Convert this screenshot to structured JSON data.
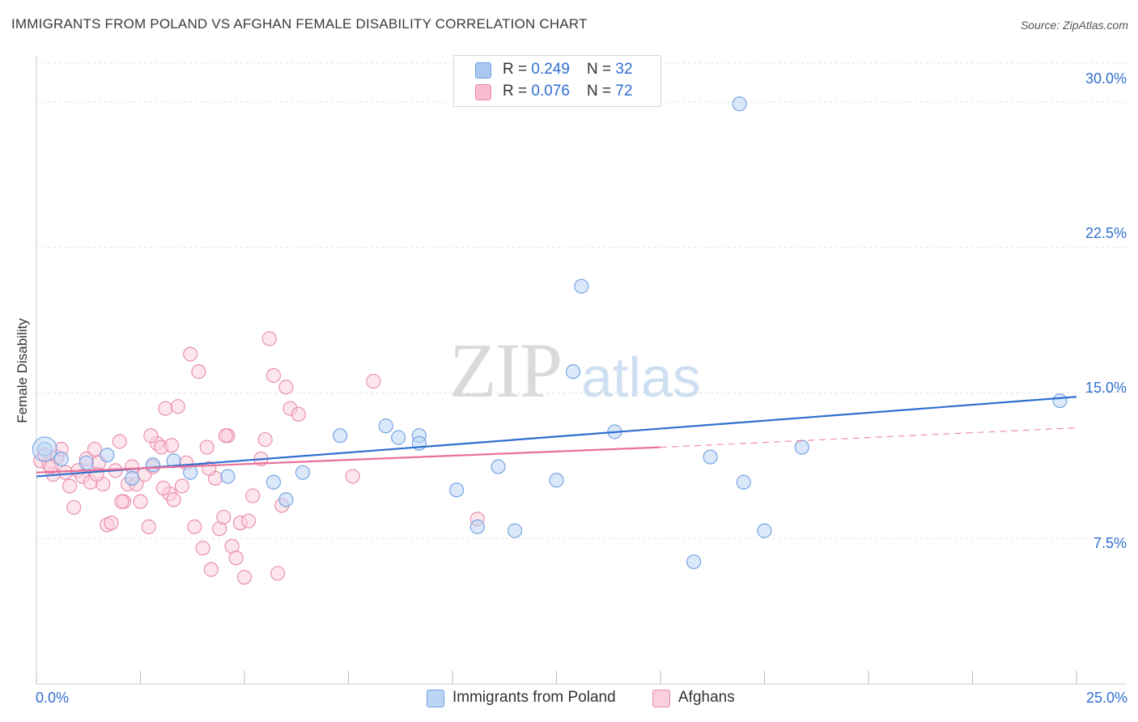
{
  "title": "IMMIGRANTS FROM POLAND VS AFGHAN FEMALE DISABILITY CORRELATION CHART",
  "source": "Source: ZipAtlas.com",
  "watermark": {
    "zip": "ZIP",
    "atlas": "atlas"
  },
  "legend_top": [
    {
      "r_label": "R = ",
      "r_value": "0.249",
      "n_label": "N = ",
      "n_value": "32",
      "color": "#a9c8f0",
      "border": "#6f9fe0"
    },
    {
      "r_label": "R = ",
      "r_value": "0.076",
      "n_label": "N = ",
      "n_value": "72",
      "color": "#f8bcd0",
      "border": "#e889a8"
    }
  ],
  "legend_bottom": [
    {
      "label": "Immigrants from Poland",
      "color": "#bcd5f5",
      "border": "#6f9fe0"
    },
    {
      "label": "Afghans",
      "color": "#fbd0dd",
      "border": "#e889a8"
    }
  ],
  "chart_data": {
    "type": "scatter",
    "title": "IMMIGRANTS FROM POLAND VS AFGHAN FEMALE DISABILITY CORRELATION CHART",
    "xlabel": "",
    "ylabel": "Female Disability",
    "xlim": [
      0,
      25
    ],
    "ylim": [
      0,
      32
    ],
    "x_tick_labels": [
      "0.0%",
      "25.0%"
    ],
    "y_ticks": [
      7.5,
      15.0,
      22.5,
      30.0
    ],
    "y_tick_labels": [
      "7.5%",
      "15.0%",
      "22.5%",
      "30.0%"
    ],
    "series": [
      {
        "name": "Immigrants from Poland",
        "color": "#6f9fe0",
        "fill": "#bcd5f5",
        "trend": {
          "x": [
            0,
            25
          ],
          "y": [
            10.7,
            14.8
          ],
          "color": "#2f6fcf"
        },
        "points": [
          {
            "x": 0.2,
            "y": 12.1
          },
          {
            "x": 1.2,
            "y": 11.4
          },
          {
            "x": 2.3,
            "y": 10.6
          },
          {
            "x": 3.3,
            "y": 11.5
          },
          {
            "x": 3.7,
            "y": 10.9
          },
          {
            "x": 4.6,
            "y": 10.7
          },
          {
            "x": 5.7,
            "y": 10.4
          },
          {
            "x": 6.0,
            "y": 9.5
          },
          {
            "x": 6.4,
            "y": 10.9
          },
          {
            "x": 7.3,
            "y": 12.8
          },
          {
            "x": 8.4,
            "y": 13.3
          },
          {
            "x": 8.7,
            "y": 12.7
          },
          {
            "x": 9.2,
            "y": 12.8
          },
          {
            "x": 9.2,
            "y": 12.4
          },
          {
            "x": 10.1,
            "y": 10.0
          },
          {
            "x": 10.6,
            "y": 8.1
          },
          {
            "x": 11.1,
            "y": 11.2
          },
          {
            "x": 11.5,
            "y": 7.9
          },
          {
            "x": 12.5,
            "y": 10.5
          },
          {
            "x": 12.9,
            "y": 16.1
          },
          {
            "x": 13.1,
            "y": 20.5
          },
          {
            "x": 13.9,
            "y": 13.0
          },
          {
            "x": 15.8,
            "y": 6.3
          },
          {
            "x": 16.2,
            "y": 11.7
          },
          {
            "x": 16.9,
            "y": 29.9
          },
          {
            "x": 17.0,
            "y": 10.4
          },
          {
            "x": 17.5,
            "y": 7.9
          },
          {
            "x": 18.4,
            "y": 12.2
          },
          {
            "x": 1.7,
            "y": 11.8
          },
          {
            "x": 2.8,
            "y": 11.3
          },
          {
            "x": 0.6,
            "y": 11.6
          },
          {
            "x": 24.6,
            "y": 14.6
          }
        ]
      },
      {
        "name": "Afghans",
        "color": "#e889a8",
        "fill": "#fbd0dd",
        "trend": {
          "x": [
            0,
            15
          ],
          "y": [
            10.9,
            12.2
          ],
          "color": "#e8709a",
          "dashed_extension": {
            "x": [
              15,
              25
            ],
            "y": [
              12.2,
              13.2
            ]
          }
        },
        "points": [
          {
            "x": 0.1,
            "y": 11.5
          },
          {
            "x": 0.2,
            "y": 11.8
          },
          {
            "x": 0.3,
            "y": 11.3
          },
          {
            "x": 0.4,
            "y": 10.8
          },
          {
            "x": 0.5,
            "y": 11.7
          },
          {
            "x": 0.6,
            "y": 12.1
          },
          {
            "x": 0.7,
            "y": 10.9
          },
          {
            "x": 0.8,
            "y": 10.2
          },
          {
            "x": 0.9,
            "y": 9.1
          },
          {
            "x": 1.0,
            "y": 11.0
          },
          {
            "x": 1.1,
            "y": 10.7
          },
          {
            "x": 1.2,
            "y": 11.6
          },
          {
            "x": 1.3,
            "y": 10.4
          },
          {
            "x": 1.4,
            "y": 12.1
          },
          {
            "x": 1.5,
            "y": 11.4
          },
          {
            "x": 1.6,
            "y": 10.3
          },
          {
            "x": 1.7,
            "y": 8.2
          },
          {
            "x": 1.8,
            "y": 8.3
          },
          {
            "x": 1.9,
            "y": 11.0
          },
          {
            "x": 2.0,
            "y": 12.5
          },
          {
            "x": 2.1,
            "y": 9.4
          },
          {
            "x": 2.2,
            "y": 10.3
          },
          {
            "x": 2.3,
            "y": 11.2
          },
          {
            "x": 2.4,
            "y": 10.3
          },
          {
            "x": 2.5,
            "y": 9.4
          },
          {
            "x": 2.6,
            "y": 10.8
          },
          {
            "x": 2.7,
            "y": 8.1
          },
          {
            "x": 2.8,
            "y": 11.2
          },
          {
            "x": 2.9,
            "y": 12.4
          },
          {
            "x": 3.0,
            "y": 12.2
          },
          {
            "x": 3.1,
            "y": 14.2
          },
          {
            "x": 3.2,
            "y": 9.8
          },
          {
            "x": 3.3,
            "y": 9.5
          },
          {
            "x": 3.4,
            "y": 14.3
          },
          {
            "x": 3.5,
            "y": 10.2
          },
          {
            "x": 3.6,
            "y": 11.4
          },
          {
            "x": 3.7,
            "y": 17.0
          },
          {
            "x": 3.8,
            "y": 8.1
          },
          {
            "x": 3.9,
            "y": 16.1
          },
          {
            "x": 4.0,
            "y": 7.0
          },
          {
            "x": 4.1,
            "y": 12.2
          },
          {
            "x": 4.2,
            "y": 5.9
          },
          {
            "x": 4.3,
            "y": 10.6
          },
          {
            "x": 4.4,
            "y": 8.0
          },
          {
            "x": 4.5,
            "y": 8.6
          },
          {
            "x": 4.6,
            "y": 12.8
          },
          {
            "x": 4.7,
            "y": 7.1
          },
          {
            "x": 4.8,
            "y": 6.5
          },
          {
            "x": 4.9,
            "y": 8.3
          },
          {
            "x": 5.0,
            "y": 5.5
          },
          {
            "x": 5.1,
            "y": 8.4
          },
          {
            "x": 5.2,
            "y": 9.7
          },
          {
            "x": 5.4,
            "y": 11.6
          },
          {
            "x": 5.5,
            "y": 12.6
          },
          {
            "x": 5.6,
            "y": 17.8
          },
          {
            "x": 5.7,
            "y": 15.9
          },
          {
            "x": 5.8,
            "y": 5.7
          },
          {
            "x": 5.9,
            "y": 9.2
          },
          {
            "x": 6.0,
            "y": 15.3
          },
          {
            "x": 6.1,
            "y": 14.2
          },
          {
            "x": 6.3,
            "y": 13.9
          },
          {
            "x": 7.6,
            "y": 10.7
          },
          {
            "x": 8.1,
            "y": 15.6
          },
          {
            "x": 10.6,
            "y": 8.5
          },
          {
            "x": 0.35,
            "y": 11.2
          },
          {
            "x": 1.45,
            "y": 10.8
          },
          {
            "x": 2.05,
            "y": 9.4
          },
          {
            "x": 2.75,
            "y": 12.8
          },
          {
            "x": 3.05,
            "y": 10.1
          },
          {
            "x": 3.25,
            "y": 12.3
          },
          {
            "x": 4.15,
            "y": 11.1
          },
          {
            "x": 4.55,
            "y": 12.8
          }
        ]
      }
    ]
  }
}
